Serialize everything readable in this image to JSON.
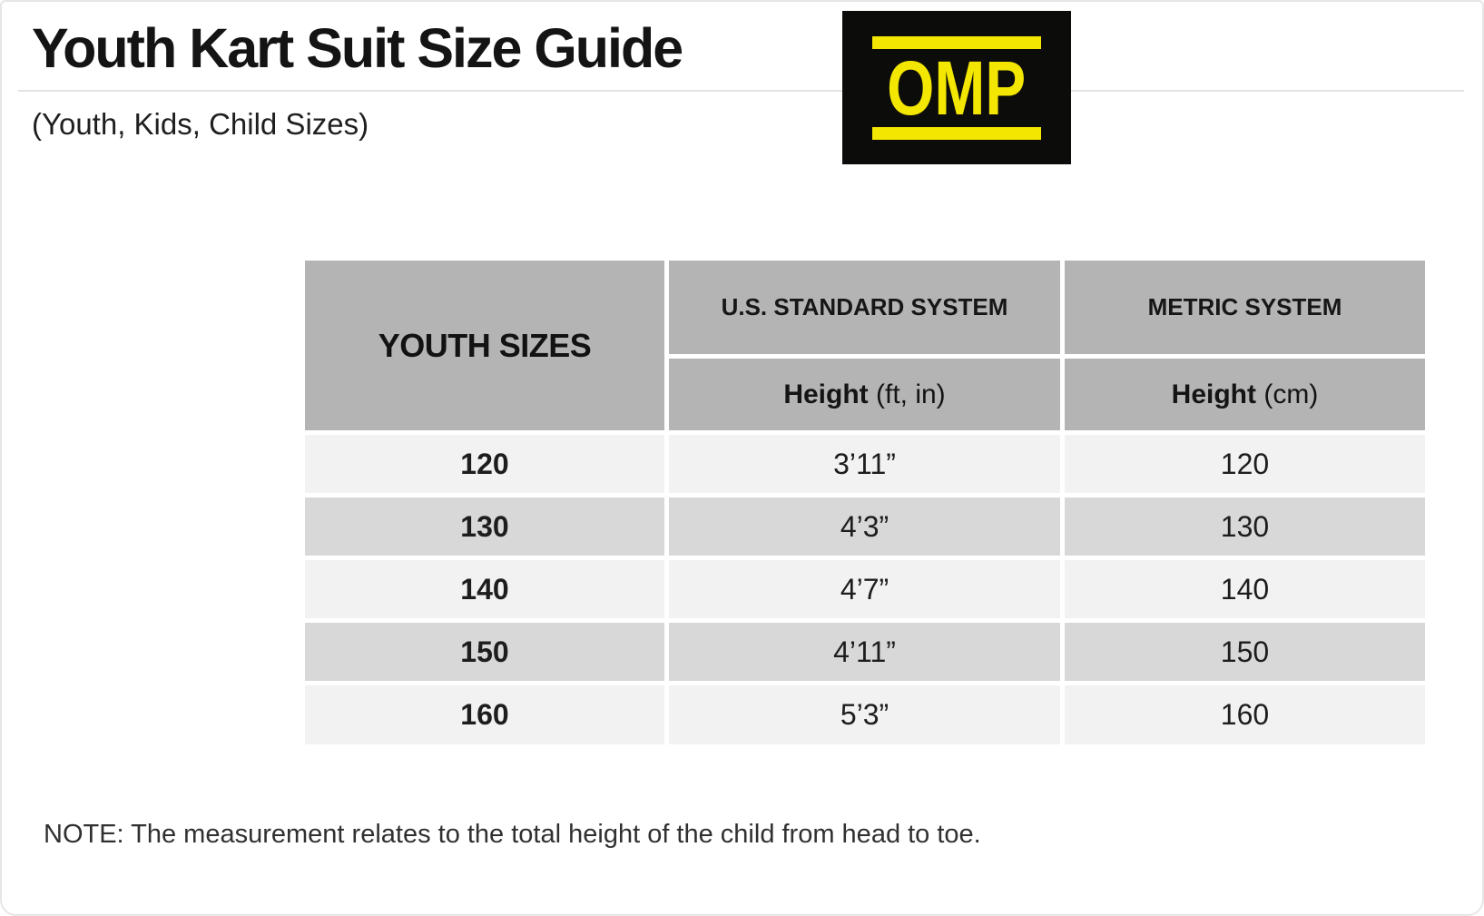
{
  "header": {
    "title": "Youth Kart Suit Size Guide",
    "subtitle": "(Youth, Kids, Child Sizes)",
    "logo_text": "OMP"
  },
  "logo_colors": {
    "background": "#0C0C0A",
    "yellow": "#F3E600"
  },
  "table": {
    "corner_header": "YOUTH SIZES",
    "system_headers": [
      "U.S. STANDARD SYSTEM",
      "METRIC SYSTEM"
    ],
    "sub_headers": [
      {
        "bold": "Height",
        "rest": " (ft, in)"
      },
      {
        "bold": "Height",
        "rest": " (cm)"
      }
    ],
    "rows": [
      {
        "size": "120",
        "height_ft_in": "3’11”",
        "height_cm": "120"
      },
      {
        "size": "130",
        "height_ft_in": "4’3”",
        "height_cm": "130"
      },
      {
        "size": "140",
        "height_ft_in": "4’7”",
        "height_cm": "140"
      },
      {
        "size": "150",
        "height_ft_in": "4’11”",
        "height_cm": "150"
      },
      {
        "size": "160",
        "height_ft_in": "5’3”",
        "height_cm": "160"
      }
    ],
    "colors": {
      "header_bg": "#B4B4B4",
      "row_light": "#F2F2F2",
      "row_dark": "#D8D8D8"
    }
  },
  "footer": {
    "note": "NOTE: The measurement relates to the total height of the child from head to toe."
  }
}
